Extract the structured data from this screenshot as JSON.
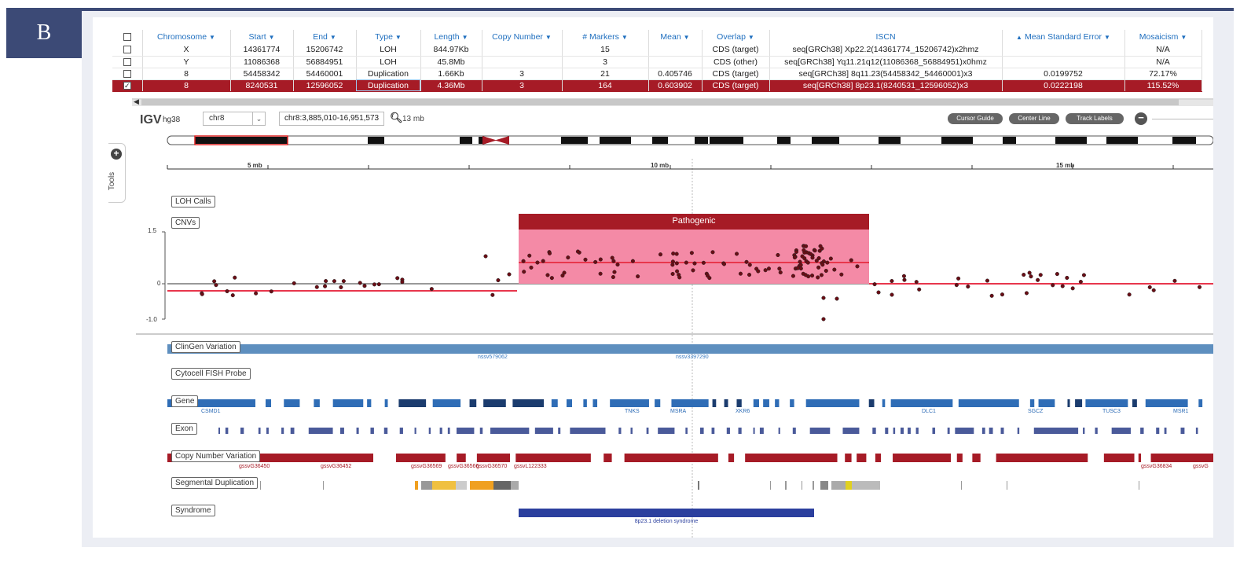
{
  "panel_letter": "B",
  "colors": {
    "accent": "#a61b26",
    "link": "#1f6fbf",
    "badge": "#3c4a76",
    "pathogenic_fill": "#f48aa6",
    "pathogenic_bar": "#a61b26",
    "gene": "#2f6db6",
    "exon": "#4a5a9a",
    "cnv_track": "#a61b26",
    "syndrome": "#2b3f9e",
    "clingen": "#5e8fbf"
  },
  "table": {
    "columns": [
      "Chromosome",
      "Start",
      "End",
      "Type",
      "Length",
      "Copy Number",
      "# Markers",
      "Mean",
      "Overlap",
      "ISCN",
      "Mean Standard Error",
      "Mosaicism"
    ],
    "rows": [
      {
        "chromosome": "X",
        "start": "14361774",
        "end": "15206742",
        "type": "LOH",
        "length": "844.97Kb",
        "copy_number": "",
        "markers": "15",
        "mean": "",
        "overlap": "CDS (target)",
        "iscn": "seq[GRCh38] Xp22.2(14361774_15206742)x2hmz",
        "mse": "",
        "mosaicism": "N/A",
        "selected": false
      },
      {
        "chromosome": "Y",
        "start": "11086368",
        "end": "56884951",
        "type": "LOH",
        "length": "45.8Mb",
        "copy_number": "",
        "markers": "3",
        "mean": "",
        "overlap": "CDS (other)",
        "iscn": "seq[GRCh38] Yq11.21q12(11086368_56884951)x0hmz",
        "mse": "",
        "mosaicism": "N/A",
        "selected": false
      },
      {
        "chromosome": "8",
        "start": "54458342",
        "end": "54460001",
        "type": "Duplication",
        "length": "1.66Kb",
        "copy_number": "3",
        "markers": "21",
        "mean": "0.405746",
        "overlap": "CDS (target)",
        "iscn": "seq[GRCh38] 8q11.23(54458342_54460001)x3",
        "mse": "0.0199752",
        "mosaicism": "72.17%",
        "selected": false
      },
      {
        "chromosome": "8",
        "start": "8240531",
        "end": "12596052",
        "type": "Duplication",
        "length": "4.36Mb",
        "copy_number": "3",
        "markers": "164",
        "mean": "0.603902",
        "overlap": "CDS (target)",
        "iscn": "seq[GRCh38] 8p23.1(8240531_12596052)x3",
        "mse": "0.0222198",
        "mosaicism": "115.52%",
        "selected": true
      }
    ]
  },
  "igv": {
    "logo": "IGV",
    "genome": "hg38",
    "chromosome": "chr8",
    "locus": "chr8:3,885,010-16,951,573",
    "span": "13 mb",
    "buttons": [
      "Cursor Guide",
      "Center Line",
      "Track Labels"
    ],
    "tools_label": "Tools",
    "ruler_ticks": [
      "5 mb",
      "10 mb",
      "15 mb"
    ],
    "track_labels": {
      "loh": "LOH Calls",
      "cnvs": "CNVs",
      "clingen": "ClinGen Variation",
      "fish": "Cytocell FISH Probe",
      "gene": "Gene",
      "exon": "Exon",
      "cnv": "Copy Number Variation",
      "segdup": "Segmental Duplication",
      "syndrome": "Syndrome"
    },
    "y_axis": [
      "1.5",
      "0",
      "-1.0"
    ],
    "pathogenic_label": "Pathogenic",
    "clingen_labels": [
      "nssv579062",
      "nssv3397290"
    ],
    "gene_labels": [
      "CSMD1",
      "TNKS",
      "MSRA",
      "XKR6",
      "DLC1",
      "SGCZ",
      "TUSC3",
      "MSR1"
    ],
    "cnv_labels": [
      "gssvG36450",
      "gssvG36452",
      "gssvG36569",
      "gssvG36566",
      "gssvG36570",
      "gssvL122333",
      "gssvG36834",
      "gssvG"
    ],
    "syndrome_label": "8p23.1 deletion syndrome"
  }
}
